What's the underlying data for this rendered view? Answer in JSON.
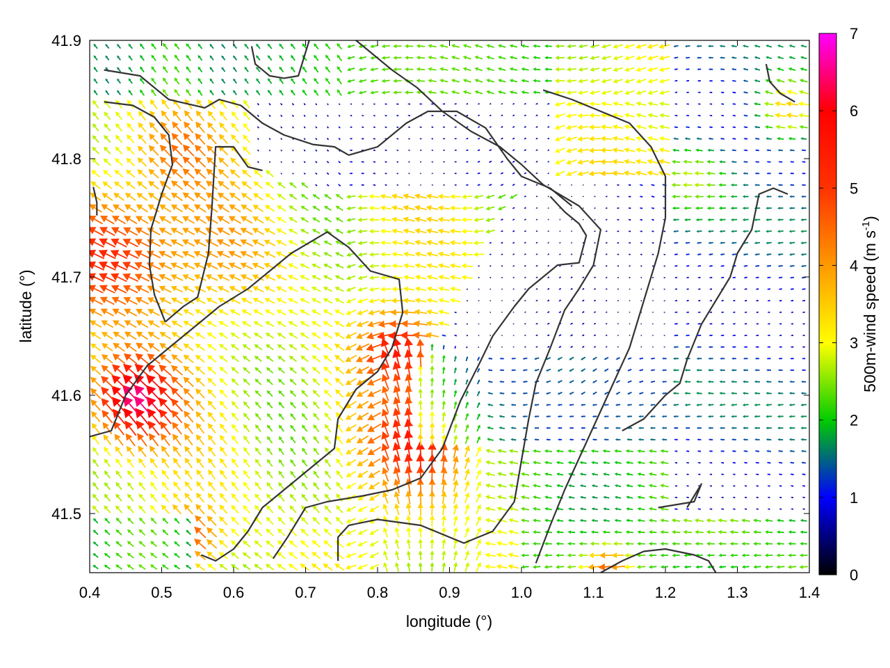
{
  "chart_data": {
    "type": "vector-field",
    "xlabel": "longitude (°)",
    "ylabel": "latitude (°)",
    "xlim": [
      0.4,
      1.4
    ],
    "ylim": [
      41.45,
      41.9
    ],
    "x_ticks": [
      "0.4",
      "0.5",
      "0.6",
      "0.7",
      "0.8",
      "0.9",
      "1.0",
      "1.1",
      "1.2",
      "1.3",
      "1.4"
    ],
    "y_ticks": [
      "41.5",
      "41.6",
      "41.7",
      "41.8",
      "41.9"
    ],
    "colorbar": {
      "label_main": "500m-wind speed (m s",
      "label_sup": "-1",
      "label_end": ")",
      "range": [
        0,
        7
      ],
      "ticks": [
        "0",
        "1",
        "2",
        "3",
        "4",
        "5",
        "6",
        "7"
      ],
      "colors": [
        "#000000",
        "#0000ff",
        "#00cc00",
        "#ffff00",
        "#ff9900",
        "#ff3300",
        "#ff0000",
        "#ff00ff"
      ]
    },
    "grid": false,
    "contour_color": "#333333",
    "contours": [
      [
        [
          0.42,
          41.875
        ],
        [
          0.47,
          41.87
        ],
        [
          0.51,
          41.85
        ],
        [
          0.56,
          41.843
        ],
        [
          0.58,
          41.85
        ],
        [
          0.61,
          41.845
        ],
        [
          0.64,
          41.83
        ],
        [
          0.67,
          41.82
        ],
        [
          0.71,
          41.812
        ],
        [
          0.74,
          41.81
        ],
        [
          0.76,
          41.803
        ]
      ],
      [
        [
          0.42,
          41.848
        ],
        [
          0.46,
          41.845
        ],
        [
          0.49,
          41.835
        ],
        [
          0.51,
          41.82
        ],
        [
          0.515,
          41.795
        ],
        [
          0.5,
          41.77
        ],
        [
          0.485,
          41.74
        ],
        [
          0.483,
          41.71
        ],
        [
          0.49,
          41.685
        ],
        [
          0.505,
          41.662
        ]
      ],
      [
        [
          0.505,
          41.662
        ],
        [
          0.53,
          41.675
        ],
        [
          0.55,
          41.683
        ],
        [
          0.565,
          41.72
        ],
        [
          0.57,
          41.76
        ],
        [
          0.575,
          41.81
        ],
        [
          0.6,
          41.81
        ],
        [
          0.62,
          41.793
        ],
        [
          0.64,
          41.79
        ]
      ],
      [
        [
          0.41,
          41.752
        ],
        [
          0.41,
          41.763
        ],
        [
          0.405,
          41.776
        ]
      ],
      [
        [
          0.625,
          41.895
        ],
        [
          0.63,
          41.88
        ],
        [
          0.65,
          41.87
        ],
        [
          0.67,
          41.868
        ],
        [
          0.69,
          41.87
        ],
        [
          0.7,
          41.89
        ],
        [
          0.705,
          41.9
        ]
      ],
      [
        [
          0.4,
          41.565
        ],
        [
          0.43,
          41.57
        ],
        [
          0.45,
          41.6
        ],
        [
          0.48,
          41.625
        ],
        [
          0.52,
          41.645
        ],
        [
          0.55,
          41.66
        ],
        [
          0.58,
          41.675
        ],
        [
          0.62,
          41.69
        ],
        [
          0.65,
          41.705
        ],
        [
          0.68,
          41.72
        ],
        [
          0.73,
          41.738
        ],
        [
          0.76,
          41.725
        ],
        [
          0.79,
          41.705
        ],
        [
          0.83,
          41.698
        ],
        [
          0.835,
          41.67
        ],
        [
          0.82,
          41.64
        ],
        [
          0.8,
          41.62
        ],
        [
          0.77,
          41.605
        ],
        [
          0.745,
          41.58
        ],
        [
          0.74,
          41.555
        ],
        [
          0.7,
          41.535
        ],
        [
          0.67,
          41.52
        ],
        [
          0.64,
          41.505
        ],
        [
          0.62,
          41.485
        ],
        [
          0.6,
          41.47
        ],
        [
          0.575,
          41.46
        ],
        [
          0.555,
          41.465
        ]
      ],
      [
        [
          0.655,
          41.462
        ],
        [
          0.675,
          41.48
        ],
        [
          0.7,
          41.505
        ],
        [
          0.73,
          41.51
        ],
        [
          0.78,
          41.515
        ],
        [
          0.82,
          41.52
        ],
        [
          0.86,
          41.53
        ],
        [
          0.89,
          41.555
        ],
        [
          0.915,
          41.595
        ],
        [
          0.94,
          41.625
        ],
        [
          0.96,
          41.65
        ],
        [
          0.99,
          41.675
        ],
        [
          1.01,
          41.69
        ],
        [
          1.03,
          41.7
        ],
        [
          1.05,
          41.71
        ],
        [
          1.08,
          41.712
        ],
        [
          1.09,
          41.735
        ],
        [
          1.08,
          41.745
        ],
        [
          1.06,
          41.755
        ],
        [
          1.04,
          41.768
        ]
      ],
      [
        [
          0.745,
          41.46
        ],
        [
          0.745,
          41.48
        ],
        [
          0.76,
          41.49
        ],
        [
          0.8,
          41.495
        ],
        [
          0.86,
          41.49
        ],
        [
          0.92,
          41.475
        ],
        [
          0.96,
          41.485
        ],
        [
          0.99,
          41.51
        ],
        [
          1.0,
          41.545
        ],
        [
          1.01,
          41.58
        ],
        [
          1.02,
          41.61
        ],
        [
          1.04,
          41.64
        ],
        [
          1.06,
          41.672
        ],
        [
          1.08,
          41.69
        ],
        [
          1.1,
          41.71
        ],
        [
          1.11,
          41.74
        ],
        [
          1.08,
          41.76
        ],
        [
          1.03,
          41.778
        ],
        [
          1.0,
          41.795
        ],
        [
          0.97,
          41.81
        ],
        [
          0.93,
          41.823
        ],
        [
          0.89,
          41.84
        ],
        [
          0.855,
          41.86
        ],
        [
          0.82,
          41.875
        ],
        [
          0.79,
          41.89
        ],
        [
          0.77,
          41.9
        ]
      ],
      [
        [
          0.76,
          41.803
        ],
        [
          0.8,
          41.81
        ],
        [
          0.84,
          41.83
        ],
        [
          0.87,
          41.84
        ],
        [
          0.91,
          41.84
        ],
        [
          0.95,
          41.826
        ],
        [
          0.98,
          41.8
        ],
        [
          1.0,
          41.785
        ],
        [
          1.04,
          41.775
        ],
        [
          1.07,
          41.76
        ]
      ],
      [
        [
          1.02,
          41.458
        ],
        [
          1.04,
          41.49
        ],
        [
          1.06,
          41.52
        ],
        [
          1.09,
          41.56
        ],
        [
          1.12,
          41.6
        ],
        [
          1.15,
          41.64
        ],
        [
          1.17,
          41.68
        ],
        [
          1.19,
          41.72
        ],
        [
          1.2,
          41.75
        ],
        [
          1.2,
          41.785
        ],
        [
          1.18,
          41.81
        ],
        [
          1.15,
          41.83
        ],
        [
          1.11,
          41.84
        ],
        [
          1.07,
          41.85
        ],
        [
          1.03,
          41.858
        ]
      ],
      [
        [
          1.23,
          41.63
        ],
        [
          1.25,
          41.66
        ],
        [
          1.27,
          41.68
        ],
        [
          1.29,
          41.7
        ],
        [
          1.3,
          41.72
        ],
        [
          1.32,
          41.74
        ],
        [
          1.33,
          41.77
        ],
        [
          1.35,
          41.775
        ],
        [
          1.37,
          41.77
        ]
      ],
      [
        [
          1.23,
          41.63
        ],
        [
          1.22,
          41.61
        ],
        [
          1.2,
          41.6
        ],
        [
          1.17,
          41.58
        ],
        [
          1.14,
          41.57
        ]
      ],
      [
        [
          1.34,
          41.88
        ],
        [
          1.345,
          41.865
        ],
        [
          1.36,
          41.855
        ],
        [
          1.38,
          41.848
        ]
      ],
      [
        [
          1.19,
          41.505
        ],
        [
          1.24,
          41.51
        ],
        [
          1.25,
          41.525
        ],
        [
          1.23,
          41.505
        ]
      ],
      [
        [
          1.11,
          41.45
        ],
        [
          1.14,
          41.46
        ],
        [
          1.17,
          41.468
        ],
        [
          1.2,
          41.47
        ],
        [
          1.24,
          41.465
        ],
        [
          1.26,
          41.46
        ],
        [
          1.27,
          41.45
        ]
      ]
    ],
    "speed_field": [
      {
        "lon": 0.46,
        "lat": 41.595,
        "amp": 3.6,
        "r": 0.06
      },
      {
        "lon": 0.43,
        "lat": 41.72,
        "amp": 2.6,
        "r": 0.09
      },
      {
        "lon": 0.52,
        "lat": 41.81,
        "amp": 1.2,
        "r": 0.06
      },
      {
        "lon": 0.6,
        "lat": 41.72,
        "amp": 0.6,
        "r": 0.08
      },
      {
        "lon": 0.83,
        "lat": 41.64,
        "amp": 2.5,
        "r": 0.05
      },
      {
        "lon": 0.86,
        "lat": 41.56,
        "amp": 2.3,
        "r": 0.07
      },
      {
        "lon": 0.54,
        "lat": 41.48,
        "amp": 1.8,
        "r": 0.04
      },
      {
        "lon": 1.12,
        "lat": 41.455,
        "amp": 2.0,
        "r": 0.03
      },
      {
        "lon": 1.37,
        "lat": 41.84,
        "amp": 2.6,
        "r": 0.045
      },
      {
        "lon": 1.24,
        "lat": 41.79,
        "amp": 1.3,
        "r": 0.05
      }
    ]
  }
}
